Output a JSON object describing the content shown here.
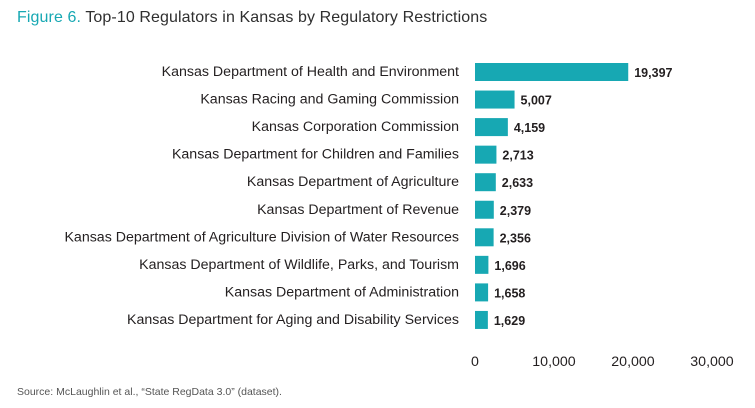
{
  "figure": {
    "label": "Figure 6.",
    "title": "Top-10 Regulators in Kansas by Regulatory Restrictions"
  },
  "chart_data": {
    "type": "bar",
    "orientation": "horizontal",
    "title": "Top-10 Regulators in Kansas by Regulatory Restrictions",
    "categories": [
      "Kansas Department of Health and Environment",
      "Kansas Racing and Gaming Commission",
      "Kansas Corporation Commission",
      "Kansas Department for Children and Families",
      "Kansas Department of Agriculture",
      "Kansas Department of Revenue",
      "Kansas Department of Agriculture Division of Water Resources",
      "Kansas Department of Wildlife, Parks, and Tourism",
      "Kansas Department of Administration",
      "Kansas Department for Aging and Disability Services"
    ],
    "values": [
      19397,
      5007,
      4159,
      2713,
      2633,
      2379,
      2356,
      1696,
      1658,
      1629
    ],
    "value_labels": [
      "19,397",
      "5,007",
      "4,159",
      "2,713",
      "2,633",
      "2,379",
      "2,356",
      "1,696",
      "1,658",
      "1,629"
    ],
    "xlim": [
      0,
      30000
    ],
    "xticks": [
      0,
      10000,
      20000,
      30000
    ],
    "xtick_labels": [
      "0",
      "10,000",
      "20,000",
      "30,000"
    ],
    "xlabel": "",
    "ylabel": "",
    "grid": false,
    "legend": "none",
    "bar_color": "#17a8b3"
  },
  "source_text": "Source: McLaughlin et al., “State RegData 3.0” (dataset)."
}
